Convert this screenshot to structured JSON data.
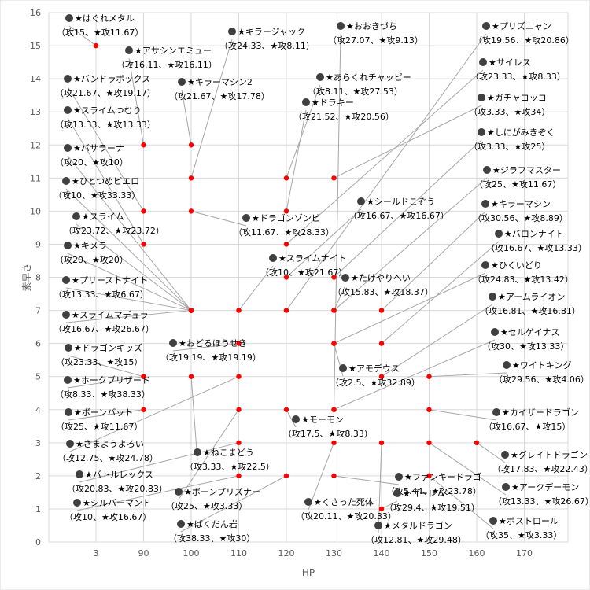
{
  "chart_data": {
    "type": "scatter",
    "xlabel": "HP",
    "ylabel": "素早さ",
    "x_ticks": [
      "3",
      "90",
      "100",
      "110",
      "120",
      "130",
      "140",
      "150",
      "160",
      "170"
    ],
    "y_ticks": [
      "0",
      "1",
      "2",
      "3",
      "4",
      "5",
      "6",
      "7",
      "8",
      "9",
      "10",
      "11",
      "12",
      "13",
      "14",
      "15",
      "16"
    ],
    "ylim": [
      0,
      16
    ],
    "grid": true,
    "point_color": "#ff0000",
    "bubble_color": "#404040",
    "points": [
      {
        "name": "★はぐれメタル",
        "stats": "（攻15、★攻11.67）",
        "x": "3",
        "y": 15
      },
      {
        "name": "★アサシンエミュー",
        "stats": "（攻16.11、★攻16.11）",
        "x": "90",
        "y": 12
      },
      {
        "name": "★バンドラボックス",
        "stats": "（攻21.67、★攻19.17）",
        "x": "90",
        "y": 10
      },
      {
        "name": "★キラーマシン2",
        "stats": "（攻21.67、★攻17.78）",
        "x": "100",
        "y": 12
      },
      {
        "name": "★キラージャック",
        "stats": "（攻24.33、★攻8.11）",
        "x": "100",
        "y": 11
      },
      {
        "name": "★スライムつむり",
        "stats": "（攻13.33、★攻13.33）",
        "x": "90",
        "y": 9
      },
      {
        "name": "★バサラーナ",
        "stats": "（攻20、★攻10）",
        "x": "100",
        "y": 7
      },
      {
        "name": "★ひとつめピエロ",
        "stats": "（攻10、★攻33.33）",
        "x": "100",
        "y": 7
      },
      {
        "name": "★スライム",
        "stats": "（攻23.72、★攻23.72）",
        "x": "100",
        "y": 7
      },
      {
        "name": "★キメラ",
        "stats": "（攻20、★攻20）",
        "x": "100",
        "y": 7
      },
      {
        "name": "★プリーストナイト",
        "stats": "（攻13.33、★攻6.67）",
        "x": "100",
        "y": 7
      },
      {
        "name": "★スライムマデュラ",
        "stats": "（攻16.67、★攻26.67）",
        "x": "100",
        "y": 7
      },
      {
        "name": "★ドラゴンキッズ",
        "stats": "（攻23.33、★攻15）",
        "x": "90",
        "y": 5
      },
      {
        "name": "★ホークブリザード",
        "stats": "（攻8.33、★攻38.33）",
        "x": "90",
        "y": 5
      },
      {
        "name": "★ボーンバット",
        "stats": "（攻25、★攻11.67）",
        "x": "90",
        "y": 4
      },
      {
        "name": "★さまようよろい",
        "stats": "（攻12.75、★攻24.78）",
        "x": "110",
        "y": 5
      },
      {
        "name": "★バトルレックス",
        "stats": "（攻20.83、★攻20.83）",
        "x": "110",
        "y": 3
      },
      {
        "name": "★シルバーマント",
        "stats": "（攻10、★攻16.67）",
        "x": "110",
        "y": 2
      },
      {
        "name": "★おどるほうせき",
        "stats": "（攻19.19、★攻19.19）",
        "x": "110",
        "y": 6
      },
      {
        "name": "★ねこまどう",
        "stats": "（攻3.33、★攻22.5）",
        "x": "100",
        "y": 5
      },
      {
        "name": "★ボーンプリズナー",
        "stats": "（攻25、★攻3.33）",
        "x": "110",
        "y": 4
      },
      {
        "name": "★ばくだん岩",
        "stats": "（攻38.33、★攻30）",
        "x": "120",
        "y": 2
      },
      {
        "name": "★ドラゴンゾンビ",
        "stats": "（攻11.67、★攻28.33）",
        "x": "100",
        "y": 10
      },
      {
        "name": "★スライムナイト",
        "stats": "（攻10、★攻21.67）",
        "x": "110",
        "y": 7
      },
      {
        "name": "★たけやりへい",
        "stats": "（攻15.83、★攻18.37）",
        "x": "130",
        "y": 7
      },
      {
        "name": "★アモデウス",
        "stats": "（攻2.5、★攻32.89）",
        "x": "130",
        "y": 6
      },
      {
        "name": "★モーモン",
        "stats": "（攻17.5、★攻8.33）",
        "x": "120",
        "y": 4
      },
      {
        "name": "★くさった死体",
        "stats": "（攻20.11、★攻20.33）",
        "x": "130",
        "y": 3
      },
      {
        "name": "★メタルドラゴン",
        "stats": "（攻12.81、★攻29.48）",
        "x": "140",
        "y": 3
      },
      {
        "name": "★ファンキードラゴ",
        "stats": "（攻5.44、★攻23.78）",
        "x": "130",
        "y": 2
      },
      {
        "name": "★おおきづち",
        "stats": "（攻27.07、★攻9.13）",
        "x": "130",
        "y": 4
      },
      {
        "name": "★あらくれチャッピー",
        "stats": "（攻8.11、★攻27.53）",
        "x": "120",
        "y": 11
      },
      {
        "name": "★ドラキー",
        "stats": "（攻21.52、★攻20.56）",
        "x": "120",
        "y": 10
      },
      {
        "name": "★シールドこぞう",
        "stats": "（攻16.67、★攻16.67）",
        "x": "120",
        "y": 8
      },
      {
        "name": "★プリズニャン",
        "stats": "（攻19.56、★攻20.86）",
        "x": "120",
        "y": 7
      },
      {
        "name": "★サイレス",
        "stats": "（攻23.33、★攻8.33）",
        "x": "120",
        "y": 9
      },
      {
        "name": "★ガチャコッコ",
        "stats": "（攻3.33、★攻34）",
        "x": "130",
        "y": 11
      },
      {
        "name": "★しにがみきぞく",
        "stats": "（攻3.33、★攻25）",
        "x": "130",
        "y": 8
      },
      {
        "name": "★ジラフマスター",
        "stats": "（攻25、★攻11.67）",
        "x": "130",
        "y": 7
      },
      {
        "name": "★キラーマシン",
        "stats": "（攻30.56、★攻8.89）",
        "x": "140",
        "y": 7
      },
      {
        "name": "★バロンナイト",
        "stats": "（攻16.67、★攻13.33）",
        "x": "140",
        "y": 6
      },
      {
        "name": "★ひくいどり",
        "stats": "（攻24.83、★攻13.42）",
        "x": "130",
        "y": 6
      },
      {
        "name": "★アームライオン",
        "stats": "（攻16.81、★攻16.81）",
        "x": "140",
        "y": 5
      },
      {
        "name": "★セルゲイナス",
        "stats": "（攻30、★攻13.33）",
        "x": "130",
        "y": 4
      },
      {
        "name": "★ワイトキング",
        "stats": "（攻29.56、★攻4.06）",
        "x": "150",
        "y": 5
      },
      {
        "name": "★カイザードラゴン",
        "stats": "（攻16.67、★攻15）",
        "x": "150",
        "y": 4
      },
      {
        "name": "★グレイトドラゴン",
        "stats": "（攻17.83、★攻22.43）",
        "x": "160",
        "y": 3
      },
      {
        "name": "★アークデーモン",
        "stats": "（攻13.33、★攻26.67）",
        "x": "150",
        "y": 3
      },
      {
        "name": "★ボストロール",
        "stats": "（攻35、★攻3.33）",
        "x": "150",
        "y": 2
      },
      {
        "name": "★ゴーレム",
        "stats": "（攻29.4、★攻19.51）",
        "x": "140",
        "y": 1
      }
    ]
  }
}
